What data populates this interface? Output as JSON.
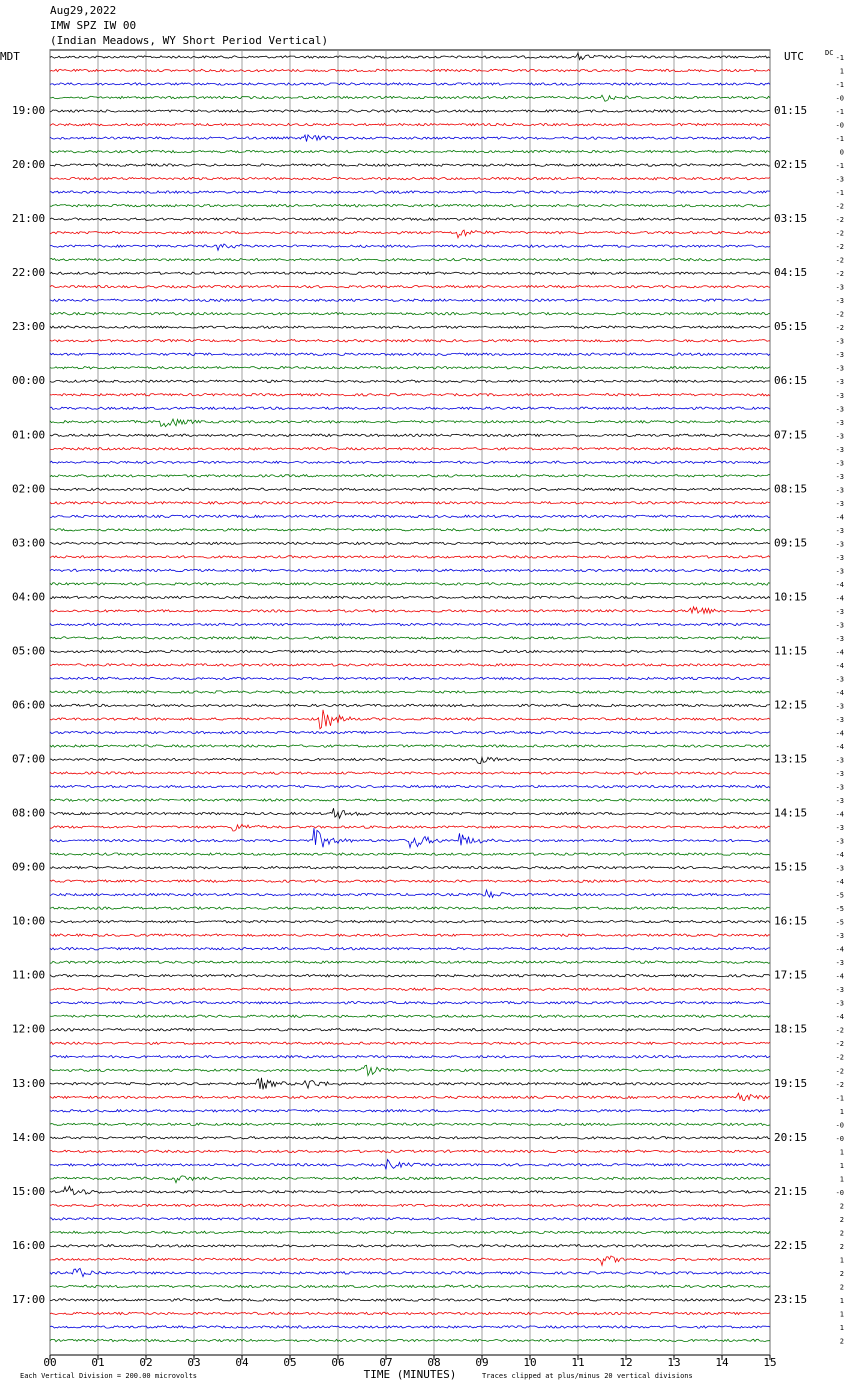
{
  "header": {
    "date": "Aug29,2022",
    "station": "IMW SPZ IW 00",
    "description": "(Indian Meadows, WY Short Period Vertical)"
  },
  "left_axis": {
    "title": "MDT",
    "labels": [
      "19:00",
      "20:00",
      "21:00",
      "22:00",
      "23:00",
      "00:00",
      "01:00",
      "02:00",
      "03:00",
      "04:00",
      "05:00",
      "06:00",
      "07:00",
      "08:00",
      "09:00",
      "10:00",
      "11:00",
      "12:00",
      "13:00",
      "14:00",
      "15:00",
      "16:00",
      "17:00"
    ]
  },
  "right_axis": {
    "title": "UTC",
    "labels": [
      "01:15",
      "02:15",
      "03:15",
      "04:15",
      "05:15",
      "06:15",
      "07:15",
      "08:15",
      "09:15",
      "10:15",
      "11:15",
      "12:15",
      "13:15",
      "14:15",
      "15:15",
      "16:15",
      "17:15",
      "18:15",
      "19:15",
      "20:15",
      "21:15",
      "22:15",
      "23:15"
    ]
  },
  "dc_column": {
    "title": "DC",
    "values": [
      "-1",
      "1",
      "-1",
      "-0",
      "-1",
      "-0",
      "-1",
      "0",
      "-1",
      "-3",
      "-1",
      "-2",
      "-2",
      "-2",
      "-2",
      "-2",
      "-2",
      "-3",
      "-3",
      "-2",
      "-2",
      "-3",
      "-3",
      "-3",
      "-3",
      "-3",
      "-3",
      "-3",
      "-3",
      "-3",
      "-3",
      "-3",
      "-3",
      "-3",
      "-4",
      "-3",
      "-3",
      "-3",
      "-3",
      "-4",
      "-4",
      "-3",
      "-3",
      "-3",
      "-4",
      "-4",
      "-3",
      "-4",
      "-3",
      "-3",
      "-4",
      "-4",
      "-3",
      "-3",
      "-3",
      "-3",
      "-4",
      "-3",
      "-3",
      "-4",
      "-3",
      "-4",
      "-5",
      "-5",
      "-5",
      "-3",
      "-4",
      "-3",
      "-4",
      "-3",
      "-3",
      "-4",
      "-2",
      "-2",
      "-2",
      "-2",
      "-2",
      "-1",
      "1",
      "-0",
      "-0",
      "1",
      "1",
      "1",
      "-0",
      "2",
      "2",
      "2",
      "2",
      "1",
      "2",
      "2",
      "1",
      "1",
      "1",
      "2"
    ]
  },
  "x_axis": {
    "title": "TIME (MINUTES)",
    "labels": [
      "00",
      "01",
      "02",
      "03",
      "04",
      "05",
      "06",
      "07",
      "08",
      "09",
      "10",
      "11",
      "12",
      "13",
      "14",
      "15"
    ]
  },
  "footer": {
    "scale": "Each Vertical Division =  200.00 microvolts",
    "clip": "Traces clipped at plus/minus 20 vertical divisions"
  }
}
